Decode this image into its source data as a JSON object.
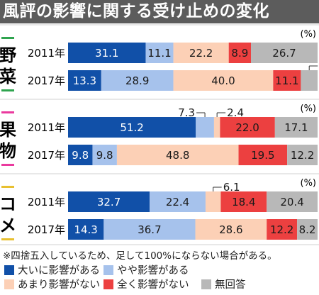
{
  "title": "風評の影響に関する受け止めの変化",
  "footnote": "※四捨五入しているため、足して100%にならない場合がある。",
  "colors": {
    "very": "#1150a8",
    "somewhat": "#a6c2ec",
    "little": "#fcd0b6",
    "none": "#ec4040",
    "noanswer": "#b8b8b8",
    "group_accent": "#2fa44f",
    "group_accent_2": "#ea3a9e",
    "group_accent_3": "#e8c030"
  },
  "chart_data": {
    "type": "bar",
    "orientation": "horizontal",
    "stacked": true,
    "unit": "(%)",
    "xlim": [
      0,
      100
    ],
    "categories": [
      "大いに影響がある",
      "やや影響がある",
      "あまり影響がない",
      "全く影響がない",
      "無回答"
    ],
    "groups": [
      {
        "name": "野菜",
        "rows": [
          {
            "year": "2011年",
            "values": [
              31.1,
              11.1,
              22.2,
              8.9,
              26.7
            ]
          },
          {
            "year": "2017年",
            "values": [
              13.3,
              28.9,
              40.0,
              11.1,
              6.7
            ]
          }
        ]
      },
      {
        "name": "果物",
        "rows": [
          {
            "year": "2011年",
            "values": [
              51.2,
              7.3,
              2.4,
              22.0,
              17.1
            ]
          },
          {
            "year": "2017年",
            "values": [
              9.8,
              9.8,
              48.8,
              19.5,
              12.2
            ]
          }
        ]
      },
      {
        "name": "コメ",
        "rows": [
          {
            "year": "2011年",
            "values": [
              32.7,
              22.4,
              6.1,
              18.4,
              20.4
            ]
          },
          {
            "year": "2017年",
            "values": [
              14.3,
              36.7,
              28.6,
              12.2,
              8.2
            ]
          }
        ]
      }
    ],
    "legend": [
      {
        "label": "大いに影響がある",
        "color_key": "very"
      },
      {
        "label": "やや影響がある",
        "color_key": "somewhat"
      },
      {
        "label": "あまり影響がない",
        "color_key": "little"
      },
      {
        "label": "全く影響がない",
        "color_key": "none"
      },
      {
        "label": "無回答",
        "color_key": "noanswer"
      }
    ]
  }
}
